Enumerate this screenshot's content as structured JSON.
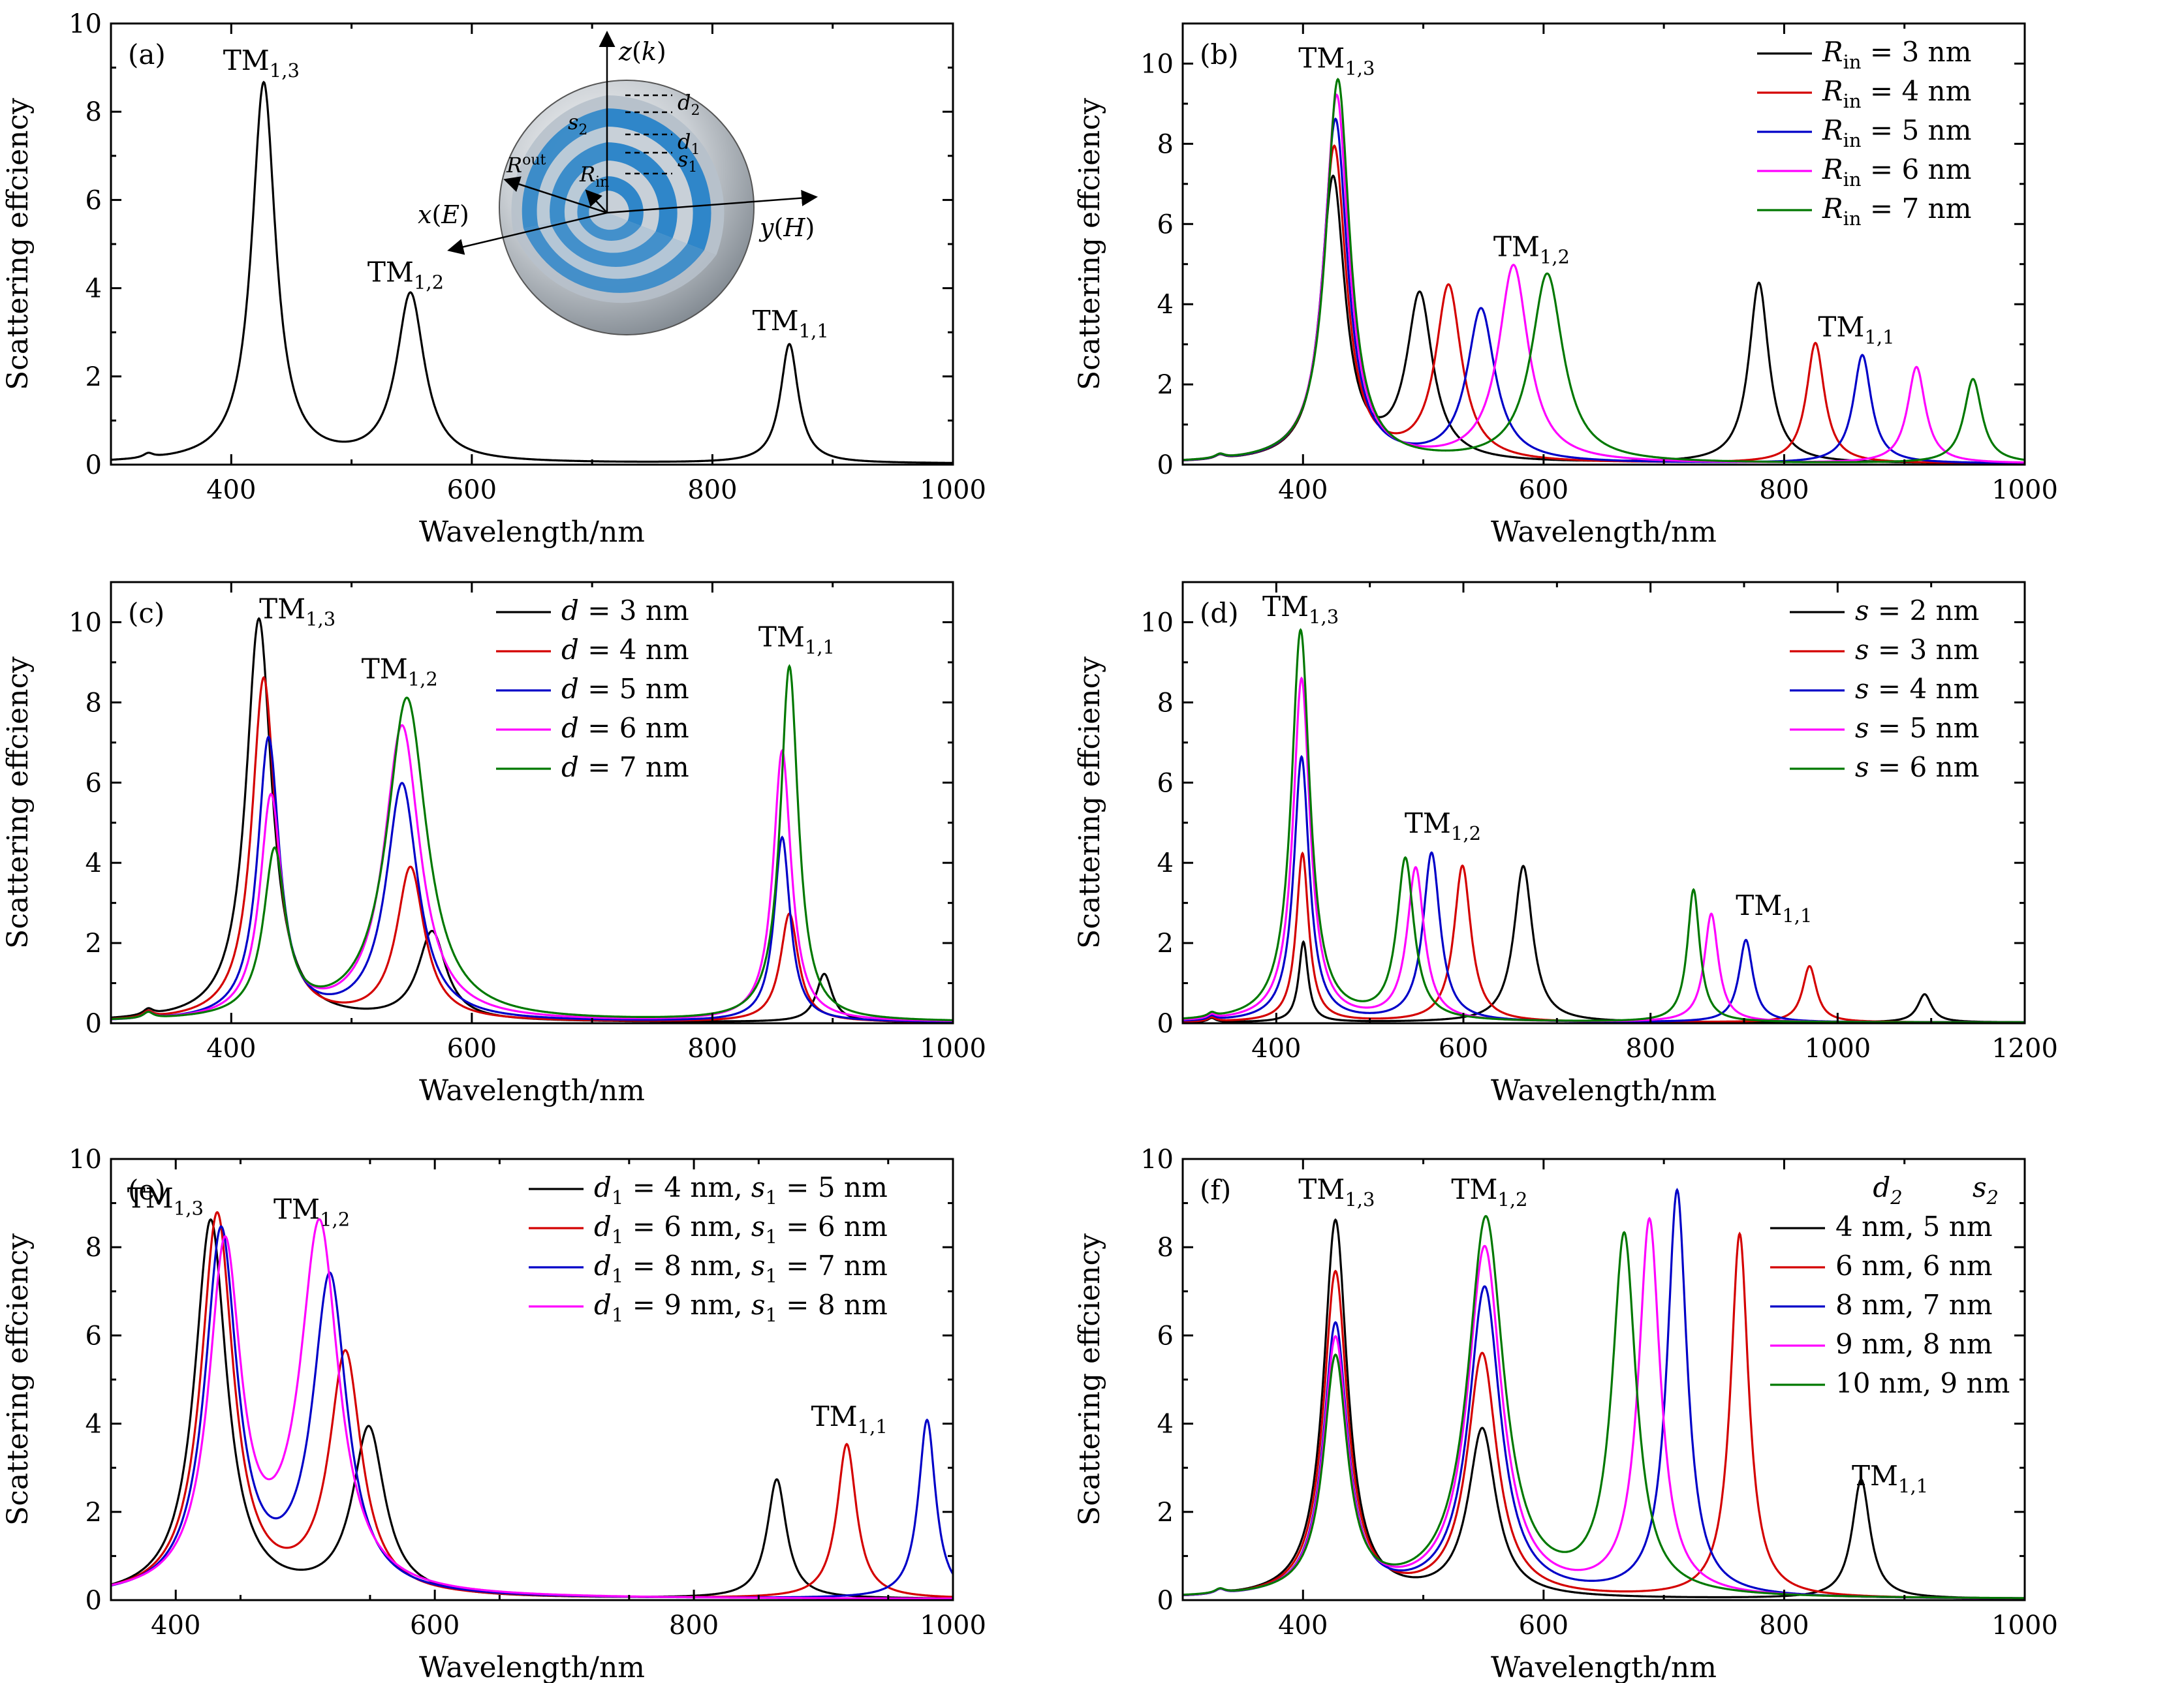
{
  "figure": {
    "background": "#ffffff"
  },
  "colors": {
    "black": "#000000",
    "red": "#d40000",
    "blue": "#0000c8",
    "magenta": "#ff00ff",
    "green": "#007800"
  },
  "chart_data": [
    {
      "id": "a",
      "panel_label": "(a)",
      "type": "line",
      "xlabel": "Wavelength/nm",
      "ylabel": "Scattering effciency",
      "xlim": [
        300,
        1000
      ],
      "ylim": [
        0,
        10
      ],
      "xticks": [
        400,
        600,
        800,
        1000
      ],
      "yticks": [
        0,
        2,
        4,
        6,
        8,
        10
      ],
      "legend": null,
      "annotations": [
        {
          "main": "TM",
          "sub": "1,3",
          "x": 425,
          "y": 8.95
        },
        {
          "main": "TM",
          "sub": "1,2",
          "x": 545,
          "y": 4.15
        },
        {
          "main": "TM",
          "sub": "1,1",
          "x": 865,
          "y": 3.05
        }
      ],
      "inset": {
        "axis_labels": [
          "z(k)",
          "x(E)",
          "y(H)"
        ],
        "dimension_labels": [
          "d2",
          "s2",
          "d1",
          "s1",
          "Rout",
          "Rin"
        ]
      },
      "series": [
        {
          "name": "",
          "color": "#000000",
          "base": 0.02,
          "peaks": [
            [
              331,
              0.1,
              5
            ],
            [
              427,
              8.6,
              12
            ],
            [
              549,
              3.8,
              14
            ],
            [
              864,
              2.7,
              9
            ]
          ]
        }
      ]
    },
    {
      "id": "b",
      "panel_label": "(b)",
      "type": "line",
      "xlabel": "Wavelength/nm",
      "ylabel": "Scattering effciency",
      "xlim": [
        300,
        1000
      ],
      "ylim": [
        0,
        11
      ],
      "xticks": [
        400,
        600,
        800,
        1000
      ],
      "yticks": [
        0,
        2,
        4,
        6,
        8,
        10
      ],
      "legend": {
        "position": "top-right",
        "entries": [
          "R_in = 3 nm",
          "R_in = 4 nm",
          "R_in = 5 nm",
          "R_in = 6 nm",
          "R_in = 7 nm"
        ]
      },
      "annotations": [
        {
          "main": "TM",
          "sub": "1,3",
          "x": 428,
          "y": 9.9
        },
        {
          "main": "TM",
          "sub": "1,2",
          "x": 590,
          "y": 5.2
        },
        {
          "main": "TM",
          "sub": "1,1",
          "x": 860,
          "y": 3.2
        }
      ],
      "series": [
        {
          "name": "R_in = 3 nm",
          "color": "#000000",
          "base": 0.02,
          "peaks": [
            [
              331,
              0.1,
              5
            ],
            [
              425,
              7.05,
              12
            ],
            [
              497,
              4.1,
              13
            ],
            [
              779,
              4.5,
              10
            ]
          ]
        },
        {
          "name": "R_in = 4 nm",
          "color": "#d40000",
          "base": 0.02,
          "peaks": [
            [
              331,
              0.1,
              5
            ],
            [
              426,
              7.85,
              12
            ],
            [
              521,
              4.35,
              13
            ],
            [
              826,
              3.0,
              9
            ]
          ]
        },
        {
          "name": "R_in = 5 nm",
          "color": "#0000c8",
          "base": 0.02,
          "peaks": [
            [
              331,
              0.1,
              5
            ],
            [
              427,
              8.55,
              12
            ],
            [
              548,
              3.8,
              14
            ],
            [
              865,
              2.7,
              9
            ]
          ]
        },
        {
          "name": "R_in = 6 nm",
          "color": "#ff00ff",
          "base": 0.02,
          "peaks": [
            [
              331,
              0.1,
              5
            ],
            [
              428,
              9.15,
              12
            ],
            [
              575,
              4.9,
              15
            ],
            [
              910,
              2.4,
              9
            ]
          ]
        },
        {
          "name": "R_in = 7 nm",
          "color": "#007800",
          "base": 0.02,
          "peaks": [
            [
              331,
              0.1,
              5
            ],
            [
              429,
              9.55,
              12
            ],
            [
              603,
              4.7,
              16
            ],
            [
              957,
              2.1,
              9
            ]
          ]
        }
      ]
    },
    {
      "id": "c",
      "panel_label": "(c)",
      "type": "line",
      "xlabel": "Wavelength/nm",
      "ylabel": "Scattering effciency",
      "xlim": [
        300,
        1000
      ],
      "ylim": [
        0,
        11
      ],
      "xticks": [
        400,
        600,
        800,
        1000
      ],
      "yticks": [
        0,
        2,
        4,
        6,
        8,
        10
      ],
      "legend": {
        "position": "top-center",
        "entries": [
          "d = 3 nm",
          "d = 4 nm",
          "d = 5 nm",
          "d = 6 nm",
          "d = 7 nm"
        ]
      },
      "annotations": [
        {
          "main": "TM",
          "sub": "1,3",
          "x": 455,
          "y": 10.1
        },
        {
          "main": "TM",
          "sub": "1,2",
          "x": 540,
          "y": 8.6
        },
        {
          "main": "TM",
          "sub": "1,1",
          "x": 870,
          "y": 9.4
        }
      ],
      "series": [
        {
          "name": "d = 3 nm",
          "color": "#000000",
          "base": 0.02,
          "peaks": [
            [
              331,
              0.15,
              5
            ],
            [
              423,
              10.05,
              13
            ],
            [
              567,
              2.2,
              14
            ],
            [
              893,
              1.2,
              8
            ]
          ]
        },
        {
          "name": "d = 4 nm",
          "color": "#d40000",
          "base": 0.02,
          "peaks": [
            [
              331,
              0.15,
              5
            ],
            [
              427,
              8.55,
              12
            ],
            [
              549,
              3.8,
              14
            ],
            [
              864,
              2.7,
              9
            ]
          ]
        },
        {
          "name": "d = 5 nm",
          "color": "#0000c8",
          "base": 0.02,
          "peaks": [
            [
              331,
              0.15,
              5
            ],
            [
              431,
              7.0,
              11
            ],
            [
              542,
              5.9,
              16
            ],
            [
              858,
              4.6,
              8
            ]
          ]
        },
        {
          "name": "d = 6 nm",
          "color": "#ff00ff",
          "base": 0.02,
          "peaks": [
            [
              331,
              0.15,
              5
            ],
            [
              433,
              5.5,
              11
            ],
            [
              542,
              7.35,
              18
            ],
            [
              858,
              6.75,
              9
            ]
          ]
        },
        {
          "name": "d = 7 nm",
          "color": "#007800",
          "base": 0.02,
          "peaks": [
            [
              331,
              0.15,
              5
            ],
            [
              436,
              4.1,
              11
            ],
            [
              546,
              8.05,
              20
            ],
            [
              864,
              8.85,
              9
            ]
          ]
        }
      ]
    },
    {
      "id": "d",
      "panel_label": "(d)",
      "type": "line",
      "xlabel": "Wavelength/nm",
      "ylabel": "Scattering effciency",
      "xlim": [
        300,
        1200
      ],
      "ylim": [
        0,
        11
      ],
      "xticks": [
        400,
        600,
        800,
        1000,
        1200
      ],
      "yticks": [
        0,
        2,
        4,
        6,
        8,
        10
      ],
      "legend": {
        "position": "top-right",
        "entries": [
          "s = 2 nm",
          "s = 3 nm",
          "s = 4 nm",
          "s = 5 nm",
          "s = 6 nm"
        ]
      },
      "annotations": [
        {
          "main": "TM",
          "sub": "1,3",
          "x": 426,
          "y": 10.15
        },
        {
          "main": "TM",
          "sub": "1,2",
          "x": 578,
          "y": 4.75
        },
        {
          "main": "TM",
          "sub": "1,1",
          "x": 932,
          "y": 2.7
        }
      ],
      "series": [
        {
          "name": "s = 2 nm",
          "color": "#000000",
          "base": 0.02,
          "peaks": [
            [
              331,
              0.1,
              5
            ],
            [
              429,
              2.0,
              6
            ],
            [
              664,
              3.9,
              12
            ],
            [
              1093,
              0.7,
              9
            ]
          ]
        },
        {
          "name": "s = 3 nm",
          "color": "#d40000",
          "base": 0.02,
          "peaks": [
            [
              331,
              0.1,
              5
            ],
            [
              428,
              4.2,
              8
            ],
            [
              599,
              3.9,
              11
            ],
            [
              970,
              1.4,
              9
            ]
          ]
        },
        {
          "name": "s = 4 nm",
          "color": "#0000c8",
          "base": 0.02,
          "peaks": [
            [
              331,
              0.1,
              5
            ],
            [
              427,
              6.6,
              10
            ],
            [
              566,
              4.2,
              11
            ],
            [
              902,
              2.05,
              9
            ]
          ]
        },
        {
          "name": "s = 5 nm",
          "color": "#ff00ff",
          "base": 0.02,
          "peaks": [
            [
              331,
              0.1,
              5
            ],
            [
              427,
              8.55,
              11
            ],
            [
              549,
              3.8,
              11
            ],
            [
              865,
              2.7,
              9
            ]
          ]
        },
        {
          "name": "s = 6 nm",
          "color": "#007800",
          "base": 0.02,
          "peaks": [
            [
              331,
              0.1,
              5
            ],
            [
              426,
              9.75,
              12
            ],
            [
              538,
              4.0,
              11
            ],
            [
              846,
              3.3,
              8
            ]
          ]
        }
      ]
    },
    {
      "id": "e",
      "panel_label": "(e)",
      "type": "line",
      "xlabel": "Wavelength/nm",
      "ylabel": "Scattering effciency",
      "xlim": [
        350,
        1000
      ],
      "ylim": [
        0,
        10
      ],
      "xticks": [
        400,
        600,
        800,
        1000
      ],
      "yticks": [
        0,
        2,
        4,
        6,
        8,
        10
      ],
      "legend": {
        "position": "top-right",
        "entries": [
          "d1 = 4 nm, s1 = 5 nm",
          "d1 = 6 nm, s1 = 6 nm",
          "d1 = 8 nm, s1 = 7 nm",
          "d1 = 9 nm, s1 = 8 nm"
        ]
      },
      "annotations": [
        {
          "main": "TM",
          "sub": "1,3",
          "x": 392,
          "y": 8.9
        },
        {
          "main": "TM",
          "sub": "1,2",
          "x": 505,
          "y": 8.65
        },
        {
          "main": "TM",
          "sub": "1,1",
          "x": 920,
          "y": 3.95
        }
      ],
      "series": [
        {
          "name": "d1 = 4 nm, s1 = 5 nm",
          "color": "#000000",
          "base": 0.02,
          "peaks": [
            [
              427,
              8.55,
              15
            ],
            [
              549,
              3.8,
              15
            ],
            [
              864,
              2.7,
              9
            ]
          ]
        },
        {
          "name": "d1 = 6 nm, s1 = 6 nm",
          "color": "#d40000",
          "base": 0.02,
          "peaks": [
            [
              432,
              8.65,
              15
            ],
            [
              531,
              5.45,
              15
            ],
            [
              918,
              3.5,
              9
            ]
          ]
        },
        {
          "name": "d1 = 8 nm, s1 = 7 nm",
          "color": "#0000c8",
          "base": 0.02,
          "peaks": [
            [
              435,
              8.2,
              15
            ],
            [
              519,
              7.15,
              16
            ],
            [
              980,
              4.05,
              8
            ]
          ]
        },
        {
          "name": "d1 = 9 nm, s1 = 8 nm",
          "color": "#ff00ff",
          "base": 0.02,
          "peaks": [
            [
              438,
              7.75,
              15
            ],
            [
              511,
              8.3,
              18
            ]
          ]
        }
      ]
    },
    {
      "id": "f",
      "panel_label": "(f)",
      "type": "line",
      "xlabel": "Wavelength/nm",
      "ylabel": "Scattering effciency",
      "xlim": [
        300,
        1000
      ],
      "ylim": [
        0,
        10
      ],
      "xticks": [
        400,
        600,
        800,
        1000
      ],
      "yticks": [
        0,
        2,
        4,
        6,
        8,
        10
      ],
      "legend": {
        "position": "top-right",
        "header": [
          "d2",
          "s2"
        ],
        "entries": [
          "4 nm, 5 nm",
          "6 nm, 6 nm",
          "8 nm, 7 nm",
          "9 nm, 8 nm",
          "10 nm, 9 nm"
        ]
      },
      "annotations": [
        {
          "main": "TM",
          "sub": "1,3",
          "x": 428,
          "y": 9.1
        },
        {
          "main": "TM",
          "sub": "1,2",
          "x": 555,
          "y": 9.1
        },
        {
          "main": "TM",
          "sub": "1,1",
          "x": 888,
          "y": 2.6
        }
      ],
      "series": [
        {
          "name": "4 nm, 5 nm",
          "color": "#000000",
          "base": 0.02,
          "peaks": [
            [
              331,
              0.1,
              5
            ],
            [
              427,
              8.55,
              12
            ],
            [
              549,
              3.8,
              14
            ],
            [
              864,
              2.7,
              9
            ]
          ]
        },
        {
          "name": "6 nm, 6 nm",
          "color": "#d40000",
          "base": 0.02,
          "peaks": [
            [
              331,
              0.1,
              5
            ],
            [
              427,
              7.35,
              12
            ],
            [
              549,
              5.5,
              15
            ],
            [
              763,
              8.25,
              9
            ]
          ]
        },
        {
          "name": "8 nm, 7 nm",
          "color": "#0000c8",
          "base": 0.02,
          "peaks": [
            [
              331,
              0.1,
              5
            ],
            [
              427,
              6.15,
              12
            ],
            [
              551,
              7.0,
              16
            ],
            [
              711,
              9.2,
              10
            ]
          ]
        },
        {
          "name": "9 nm, 8 nm",
          "color": "#ff00ff",
          "base": 0.02,
          "peaks": [
            [
              331,
              0.1,
              5
            ],
            [
              427,
              5.8,
              12
            ],
            [
              551,
              7.9,
              17
            ],
            [
              688,
              8.5,
              11
            ]
          ]
        },
        {
          "name": "10 nm, 9 nm",
          "color": "#007800",
          "base": 0.02,
          "peaks": [
            [
              331,
              0.1,
              5
            ],
            [
              427,
              5.35,
              12
            ],
            [
              552,
              8.55,
              18
            ],
            [
              667,
              8.1,
              12
            ]
          ]
        }
      ]
    }
  ]
}
